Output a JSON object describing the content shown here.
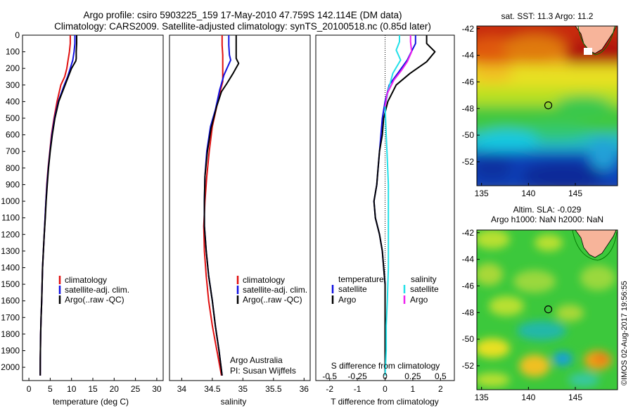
{
  "header": {
    "title_line1": "Argo profile: csiro 5903225_159 17-May-2010 47.759S 142.114E (DM data)",
    "title_line2": "Climatology: CARS2009. Satellite-adjusted climatology: synTS_20100518.nc (0.85d later)"
  },
  "colors": {
    "climatology": "#e01010",
    "satellite": "#1010e0",
    "argo": "#000000",
    "satellite_salinity": "#22e0e8",
    "argo_salinity": "#ee22ee",
    "land": "#f7b49a"
  },
  "chart_data": [
    {
      "type": "line",
      "panel": "temperature",
      "xlabel": "temperature (deg C)",
      "ylabel": "",
      "xlim": [
        -1.5,
        31.5
      ],
      "ylim": [
        2080,
        0
      ],
      "xticks": [
        0,
        5,
        10,
        15,
        20,
        25,
        30
      ],
      "yticks": [
        0,
        100,
        200,
        300,
        400,
        500,
        600,
        700,
        800,
        900,
        1000,
        1100,
        1200,
        1300,
        1400,
        1500,
        1600,
        1700,
        1800,
        1900,
        2000
      ],
      "legend": [
        "climatology",
        "satellite-adj. clim.",
        "Argo(..raw -QC)"
      ],
      "series": [
        {
          "name": "climatology",
          "x": [
            9.7,
            9.7,
            9.5,
            9.2,
            8.9,
            8.4,
            7.5,
            6.6,
            5.9,
            5.3,
            4.9,
            4.5,
            4.2,
            4.0,
            3.8,
            3.6,
            3.4,
            3.2,
            3.1,
            3.0,
            2.85,
            2.75,
            2.68,
            2.65
          ],
          "y": [
            0,
            50,
            100,
            150,
            200,
            250,
            300,
            400,
            500,
            600,
            700,
            800,
            900,
            1000,
            1100,
            1200,
            1300,
            1400,
            1500,
            1600,
            1700,
            1800,
            1950,
            2050
          ]
        },
        {
          "name": "satellite-adj. clim.",
          "x": [
            10.8,
            10.8,
            10.6,
            10.3,
            9.7,
            9.1,
            8.3,
            6.9,
            6.0,
            5.4,
            4.95,
            4.55,
            4.25,
            4.0,
            3.8,
            3.6,
            3.4,
            3.2,
            3.1,
            3.0,
            2.85,
            2.75,
            2.68,
            2.65
          ],
          "y": [
            0,
            50,
            100,
            150,
            200,
            250,
            300,
            400,
            500,
            600,
            700,
            800,
            900,
            1000,
            1100,
            1200,
            1300,
            1400,
            1500,
            1600,
            1700,
            1800,
            1950,
            2050
          ]
        },
        {
          "name": "Argo(..raw -QC)",
          "x": [
            11.2,
            11.2,
            11.1,
            11.1,
            11.0,
            10.0,
            9.1,
            7.0,
            6.1,
            5.5,
            5.0,
            4.6,
            4.3,
            4.05,
            3.85,
            3.6,
            3.4,
            3.2,
            3.1,
            3.0,
            2.85,
            2.75,
            2.68,
            2.65
          ],
          "y": [
            0,
            50,
            100,
            140,
            155,
            200,
            260,
            400,
            500,
            600,
            700,
            800,
            900,
            1000,
            1100,
            1200,
            1300,
            1400,
            1500,
            1600,
            1700,
            1800,
            1950,
            2050
          ]
        }
      ]
    },
    {
      "type": "line",
      "panel": "salinity",
      "xlabel": "salinity",
      "ylabel": "",
      "xlim": [
        33.8,
        36.1
      ],
      "ylim": [
        2080,
        0
      ],
      "xticks": [
        34,
        34.5,
        35,
        35.5,
        36
      ],
      "legend": [
        "climatology",
        "satellite-adj. clim.",
        "Argo(..raw -QC)"
      ],
      "annotation": [
        "Argo Australia",
        "PI: Susan Wijffels"
      ],
      "series": [
        {
          "name": "climatology",
          "x": [
            34.66,
            34.66,
            34.67,
            34.67,
            34.62,
            34.56,
            34.5,
            34.45,
            34.41,
            34.38,
            34.36,
            34.37,
            34.4,
            34.44,
            34.5,
            34.55,
            34.6,
            34.65
          ],
          "y": [
            0,
            60,
            120,
            280,
            350,
            450,
            550,
            700,
            850,
            1000,
            1150,
            1300,
            1450,
            1600,
            1750,
            1850,
            1950,
            2050
          ]
        },
        {
          "name": "satellite-adj. clim.",
          "x": [
            34.77,
            34.77,
            34.78,
            34.8,
            34.69,
            34.62,
            34.55,
            34.47,
            34.41,
            34.38,
            34.37,
            34.37,
            34.4,
            34.44,
            34.5,
            34.55,
            34.61,
            34.66
          ],
          "y": [
            0,
            60,
            120,
            150,
            240,
            330,
            450,
            550,
            700,
            850,
            1000,
            1150,
            1300,
            1450,
            1600,
            1750,
            1900,
            2050
          ]
        },
        {
          "name": "Argo(..raw -QC)",
          "x": [
            34.89,
            34.89,
            34.89,
            34.93,
            34.84,
            34.74,
            34.65,
            34.57,
            34.48,
            34.42,
            34.38,
            34.37,
            34.37,
            34.4,
            34.44,
            34.5,
            34.55,
            34.61,
            34.66
          ],
          "y": [
            0,
            60,
            140,
            170,
            230,
            290,
            340,
            430,
            560,
            700,
            850,
            1000,
            1150,
            1300,
            1450,
            1600,
            1750,
            1900,
            2050
          ]
        }
      ]
    },
    {
      "type": "line",
      "panel": "difference",
      "xlabel": "T difference from climatology",
      "xlabel_top": "S difference from climatology",
      "xlim": [
        -2.5,
        2.5
      ],
      "ylim": [
        2080,
        0
      ],
      "xticks": [
        -2,
        -1,
        0,
        1,
        2
      ],
      "xticks_top": [
        -0.5,
        -0.25,
        0,
        0.25,
        0.5
      ],
      "legend": {
        "col1_title": "temperature",
        "col2_title": "salinity",
        "col1": [
          "satellite",
          "Argo"
        ],
        "col2": [
          "satellite",
          "Argo"
        ]
      },
      "series": [
        {
          "name": "satellite",
          "quantity": "temperature",
          "x": [
            1.1,
            1.1,
            0.95,
            0.8,
            0.5,
            0.15,
            0.0,
            -0.1,
            -0.15,
            -0.2,
            -0.25,
            -0.3,
            -0.4,
            -0.35,
            -0.2,
            -0.1,
            -0.05,
            0,
            0,
            0,
            0
          ],
          "y": [
            0,
            50,
            100,
            150,
            220,
            300,
            400,
            500,
            600,
            700,
            800,
            900,
            1000,
            1100,
            1200,
            1300,
            1400,
            1500,
            1700,
            1900,
            2050
          ]
        },
        {
          "name": "Argo",
          "quantity": "temperature",
          "x": [
            1.5,
            1.5,
            1.8,
            1.5,
            0.9,
            0.4,
            0.1,
            -0.05,
            -0.1,
            -0.2,
            -0.25,
            -0.3,
            -0.4,
            -0.35,
            -0.2,
            -0.1,
            -0.05,
            0,
            0,
            0,
            0
          ],
          "y": [
            0,
            50,
            100,
            160,
            230,
            300,
            400,
            500,
            600,
            700,
            800,
            900,
            1000,
            1100,
            1200,
            1300,
            1400,
            1500,
            1700,
            1900,
            2050
          ]
        },
        {
          "name": "satellite",
          "quantity": "salinity",
          "x": [
            0.13,
            0.13,
            0.1,
            0.14,
            0.07,
            0.03,
            0.0,
            0.01,
            0.02,
            0.03,
            0.03,
            0.03,
            0.03,
            0.02,
            0.01,
            0.01,
            0.0
          ],
          "y": [
            0,
            40,
            90,
            150,
            230,
            330,
            430,
            600,
            750,
            900,
            1050,
            1200,
            1400,
            1600,
            1750,
            1900,
            2050
          ]
        },
        {
          "name": "Argo",
          "quantity": "salinity",
          "x": [
            0.23,
            0.23,
            0.24,
            0.2,
            0.15,
            0.08,
            0.02,
            0.0
          ],
          "y": [
            0,
            40,
            100,
            160,
            210,
            270,
            350,
            430
          ]
        }
      ]
    }
  ],
  "maps": [
    {
      "title_lines": [
        "sat. SST: 11.3 Argo: 11.2"
      ],
      "xticks": [
        135,
        140,
        145
      ],
      "yticks": [
        -42,
        -44,
        -46,
        -48,
        -50,
        -52
      ],
      "lon_range": [
        134.5,
        149.5
      ],
      "lat_range": [
        -53.8,
        -41.8
      ],
      "marker": {
        "lon": 142.114,
        "lat": -47.759
      },
      "colormap": "sst"
    },
    {
      "title_lines": [
        "Altim. SLA: -0.029",
        "Argo h1000: NaN h2000: NaN"
      ],
      "xticks": [
        135,
        140,
        145
      ],
      "yticks": [
        -42,
        -44,
        -46,
        -48,
        -50,
        -52
      ],
      "lon_range": [
        134.5,
        149.5
      ],
      "lat_range": [
        -53.8,
        -41.8
      ],
      "marker": {
        "lon": 142.114,
        "lat": -47.759
      },
      "colormap": "sla"
    }
  ],
  "credit": "©IMOS 02-Aug-2017 19:56:55"
}
